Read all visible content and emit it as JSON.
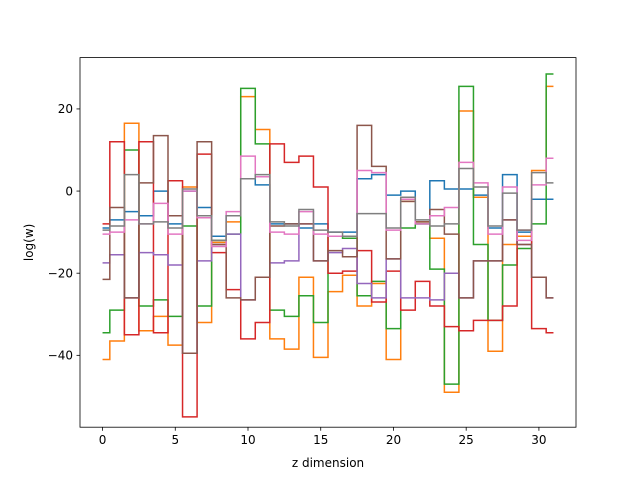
{
  "chart_data": {
    "type": "line",
    "step": "mid",
    "xlabel": "z dimension",
    "ylabel": "log(w)",
    "xlim": [
      -1.55,
      32.55
    ],
    "ylim": [
      -57.5,
      32.5
    ],
    "xticks": [
      0,
      5,
      10,
      15,
      20,
      25,
      30
    ],
    "yticks": [
      -40,
      -20,
      0,
      20
    ],
    "grid": false,
    "legend": "none",
    "x": [
      0,
      1,
      2,
      3,
      4,
      5,
      6,
      7,
      8,
      9,
      10,
      11,
      12,
      13,
      14,
      15,
      16,
      17,
      18,
      19,
      20,
      21,
      22,
      23,
      24,
      25,
      26,
      27,
      28,
      29,
      30,
      31
    ],
    "series": [
      {
        "color": "#1f77b4",
        "values": [
          -9,
          -7,
          -5,
          -6,
          0,
          -8,
          0,
          -4,
          -11,
          -6,
          3,
          1.5,
          -8,
          -8,
          -9,
          -8,
          -10,
          -10,
          3,
          4,
          -1,
          0,
          -8,
          2.5,
          0.5,
          0.5,
          -1,
          -9,
          4,
          -10,
          -2,
          -2
        ]
      },
      {
        "color": "#ff7f0e",
        "values": [
          -41,
          -36.5,
          16.5,
          -34,
          -30.5,
          -37.5,
          1,
          -32,
          -12.5,
          -7.5,
          23,
          15,
          -36,
          -38.5,
          -21,
          -40.5,
          -24.5,
          -20.5,
          -28,
          -22.5,
          -41,
          -2.5,
          -7.5,
          -11.5,
          -49,
          19.5,
          -1.5,
          -39,
          -13,
          -11,
          5,
          25.5
        ]
      },
      {
        "color": "#2ca02c",
        "values": [
          -34.5,
          -29,
          10,
          -28,
          -26.5,
          -30.5,
          -8.5,
          -28,
          -12,
          -10.5,
          25,
          11.5,
          -29,
          -30.5,
          -25.5,
          -32,
          -11,
          -11.5,
          -25.5,
          -22,
          -33.5,
          -9,
          -8,
          -19,
          -47,
          25.5,
          -13,
          -31.5,
          -18,
          -14,
          -8,
          28.5
        ]
      },
      {
        "color": "#d62728",
        "values": [
          -8,
          12,
          -35,
          12,
          -34.5,
          2.5,
          -55,
          9,
          -15,
          -24,
          -36,
          -32,
          11.5,
          7,
          8.5,
          1,
          -20,
          -19.5,
          -14.5,
          -27,
          -19.5,
          -29,
          -22,
          -28,
          -33,
          -34,
          -31.5,
          -31.5,
          -28,
          -9.5,
          -33.5,
          -34.5
        ]
      },
      {
        "color": "#9467bd",
        "values": [
          -17.5,
          -15.5,
          -26,
          -15,
          -15.5,
          -18,
          -39.5,
          -17,
          -13,
          -10.5,
          -26.5,
          -21,
          -17.5,
          -17,
          -8,
          -17,
          -15,
          -14,
          -22.5,
          -26,
          -16.5,
          -26,
          -26,
          -26.5,
          -20,
          -26,
          -17,
          -17,
          -7,
          -13,
          -21,
          -26
        ]
      },
      {
        "color": "#8c564b",
        "values": [
          -21.5,
          -4,
          -26,
          2,
          13.5,
          -6,
          -39.5,
          12,
          -13,
          -26,
          -26.5,
          -21,
          -8.5,
          -8,
          -8,
          -17,
          -14.5,
          -16,
          16,
          6,
          -16.5,
          -2.5,
          -7.5,
          -4.5,
          -10.5,
          -26,
          -17,
          -17,
          -7,
          -13,
          -21,
          -26
        ]
      },
      {
        "color": "#e377c2",
        "values": [
          -10.5,
          -10,
          -7,
          -8,
          -3,
          -10.5,
          0,
          -6.5,
          -13.5,
          -5,
          8.5,
          3.5,
          -10,
          -10.5,
          -5,
          -10.5,
          -11,
          -11,
          5,
          4.5,
          -9.5,
          -2,
          -8,
          -6,
          -4,
          7,
          2,
          -10.5,
          1,
          -12,
          1.5,
          8
        ]
      },
      {
        "color": "#7f7f7f",
        "values": [
          -9.5,
          -8.5,
          4,
          -8,
          -7.5,
          -9,
          0.5,
          -6,
          -12,
          -6,
          3,
          4,
          -7.5,
          -8.5,
          -4.5,
          -9.5,
          -10,
          -11,
          -5.5,
          -5.5,
          -9,
          -1.5,
          -7,
          -8.5,
          -8,
          5.5,
          1,
          -8.5,
          -0.5,
          -9.5,
          4.5,
          2
        ]
      }
    ]
  }
}
